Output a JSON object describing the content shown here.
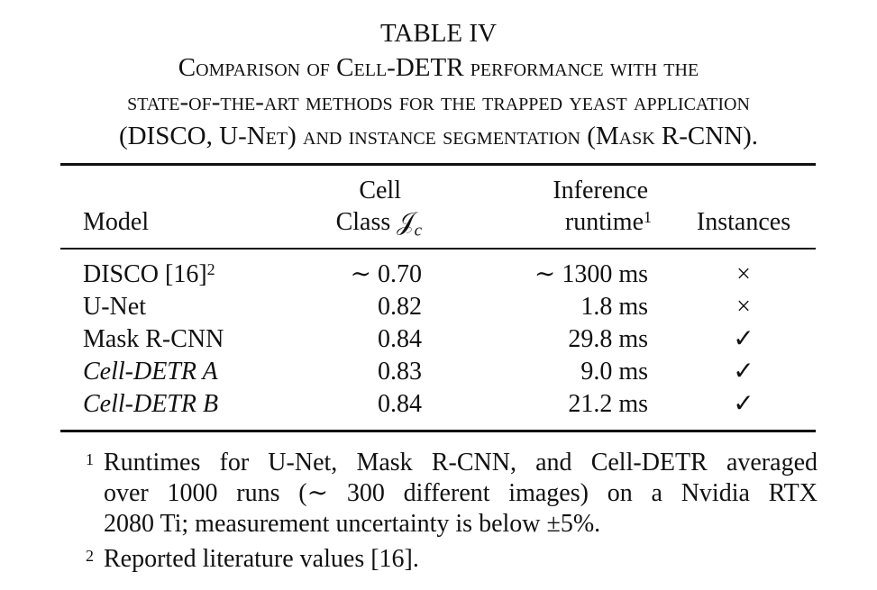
{
  "caption": {
    "table_number": "TABLE IV",
    "line1": "Comparison of Cell-DETR performance with the",
    "line2": "state-of-the-art methods for the trapped yeast application",
    "line3": "(DISCO, U-Net) and instance segmentation (Mask R-CNN)."
  },
  "headers": {
    "model": "Model",
    "cell_top": "Cell",
    "cell_bottom": "Class 𝒥",
    "cell_sub": "c",
    "runtime_top": "Inference",
    "runtime_bottom": "runtime",
    "runtime_sup": "1",
    "instances": "Instances"
  },
  "rows": [
    {
      "model": "DISCO [16]",
      "model_sup": "2",
      "cell": "∼ 0.70",
      "runtime": "∼ 1300 ms",
      "instances": "×"
    },
    {
      "model": "U-Net",
      "model_sup": "",
      "cell": "0.82",
      "runtime": "1.8 ms",
      "instances": "×"
    },
    {
      "model": "Mask R-CNN",
      "model_sup": "",
      "cell": "0.84",
      "runtime": "29.8 ms",
      "instances": "✓"
    },
    {
      "model": "Cell-DETR A",
      "model_sup": "",
      "cell": "0.83",
      "runtime": "9.0 ms",
      "instances": "✓"
    },
    {
      "model": "Cell-DETR B",
      "model_sup": "",
      "cell": "0.84",
      "runtime": "21.2 ms",
      "instances": "✓"
    }
  ],
  "footnotes": [
    {
      "mark": "1",
      "line1": "Runtimes for U-Net, Mask R-CNN, and Cell-DETR averaged",
      "line2": "over 1000 runs (∼ 300 different images) on a Nvidia RTX",
      "line3": "2080 Ti; measurement uncertainty is below ±5%."
    },
    {
      "mark": "2",
      "line1": "Reported literature values [16]."
    }
  ]
}
